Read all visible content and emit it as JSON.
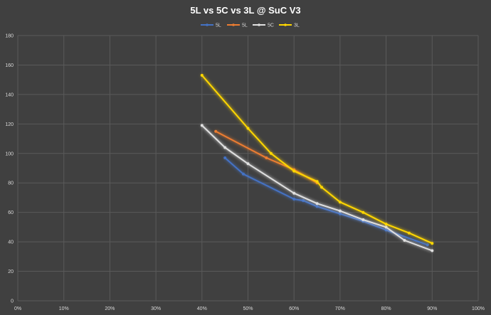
{
  "chart_data": {
    "type": "line",
    "title": "5L vs 5C vs 3L @ SuC V3",
    "xlabel": "",
    "ylabel": "",
    "xlim": [
      0,
      1
    ],
    "ylim": [
      0,
      180
    ],
    "x_ticks": [
      "0%",
      "10%",
      "20%",
      "30%",
      "40%",
      "50%",
      "60%",
      "70%",
      "80%",
      "90%",
      "100%"
    ],
    "y_ticks": [
      "0",
      "20",
      "40",
      "60",
      "80",
      "100",
      "120",
      "140",
      "160",
      "180"
    ],
    "grid": true,
    "legend_position": "top",
    "series": [
      {
        "name": "5L",
        "color": "#4472c4",
        "points": [
          [
            0.45,
            97
          ],
          [
            0.49,
            86
          ],
          [
            0.6,
            69
          ],
          [
            0.62,
            68
          ],
          [
            0.65,
            64
          ],
          [
            0.7,
            59
          ],
          [
            0.75,
            54
          ],
          [
            0.8,
            48
          ],
          [
            0.89,
            38
          ]
        ]
      },
      {
        "name": "5L",
        "color": "#ed7d31",
        "points": [
          [
            0.43,
            115
          ],
          [
            0.54,
            97
          ],
          [
            0.6,
            89
          ],
          [
            0.65,
            80
          ]
        ]
      },
      {
        "name": "5C",
        "color": "#e0e0e0",
        "points": [
          [
            0.4,
            119
          ],
          [
            0.45,
            104
          ],
          [
            0.5,
            93
          ],
          [
            0.6,
            73
          ],
          [
            0.65,
            66
          ],
          [
            0.7,
            61
          ],
          [
            0.75,
            55
          ],
          [
            0.8,
            50
          ],
          [
            0.84,
            41
          ],
          [
            0.9,
            34
          ]
        ]
      },
      {
        "name": "3L",
        "color": "#ffd700",
        "points": [
          [
            0.4,
            153
          ],
          [
            0.5,
            117
          ],
          [
            0.55,
            100
          ],
          [
            0.6,
            88
          ],
          [
            0.65,
            81
          ],
          [
            0.66,
            77
          ],
          [
            0.7,
            67
          ],
          [
            0.75,
            60
          ],
          [
            0.8,
            52
          ],
          [
            0.85,
            46
          ],
          [
            0.9,
            39
          ]
        ]
      }
    ]
  }
}
